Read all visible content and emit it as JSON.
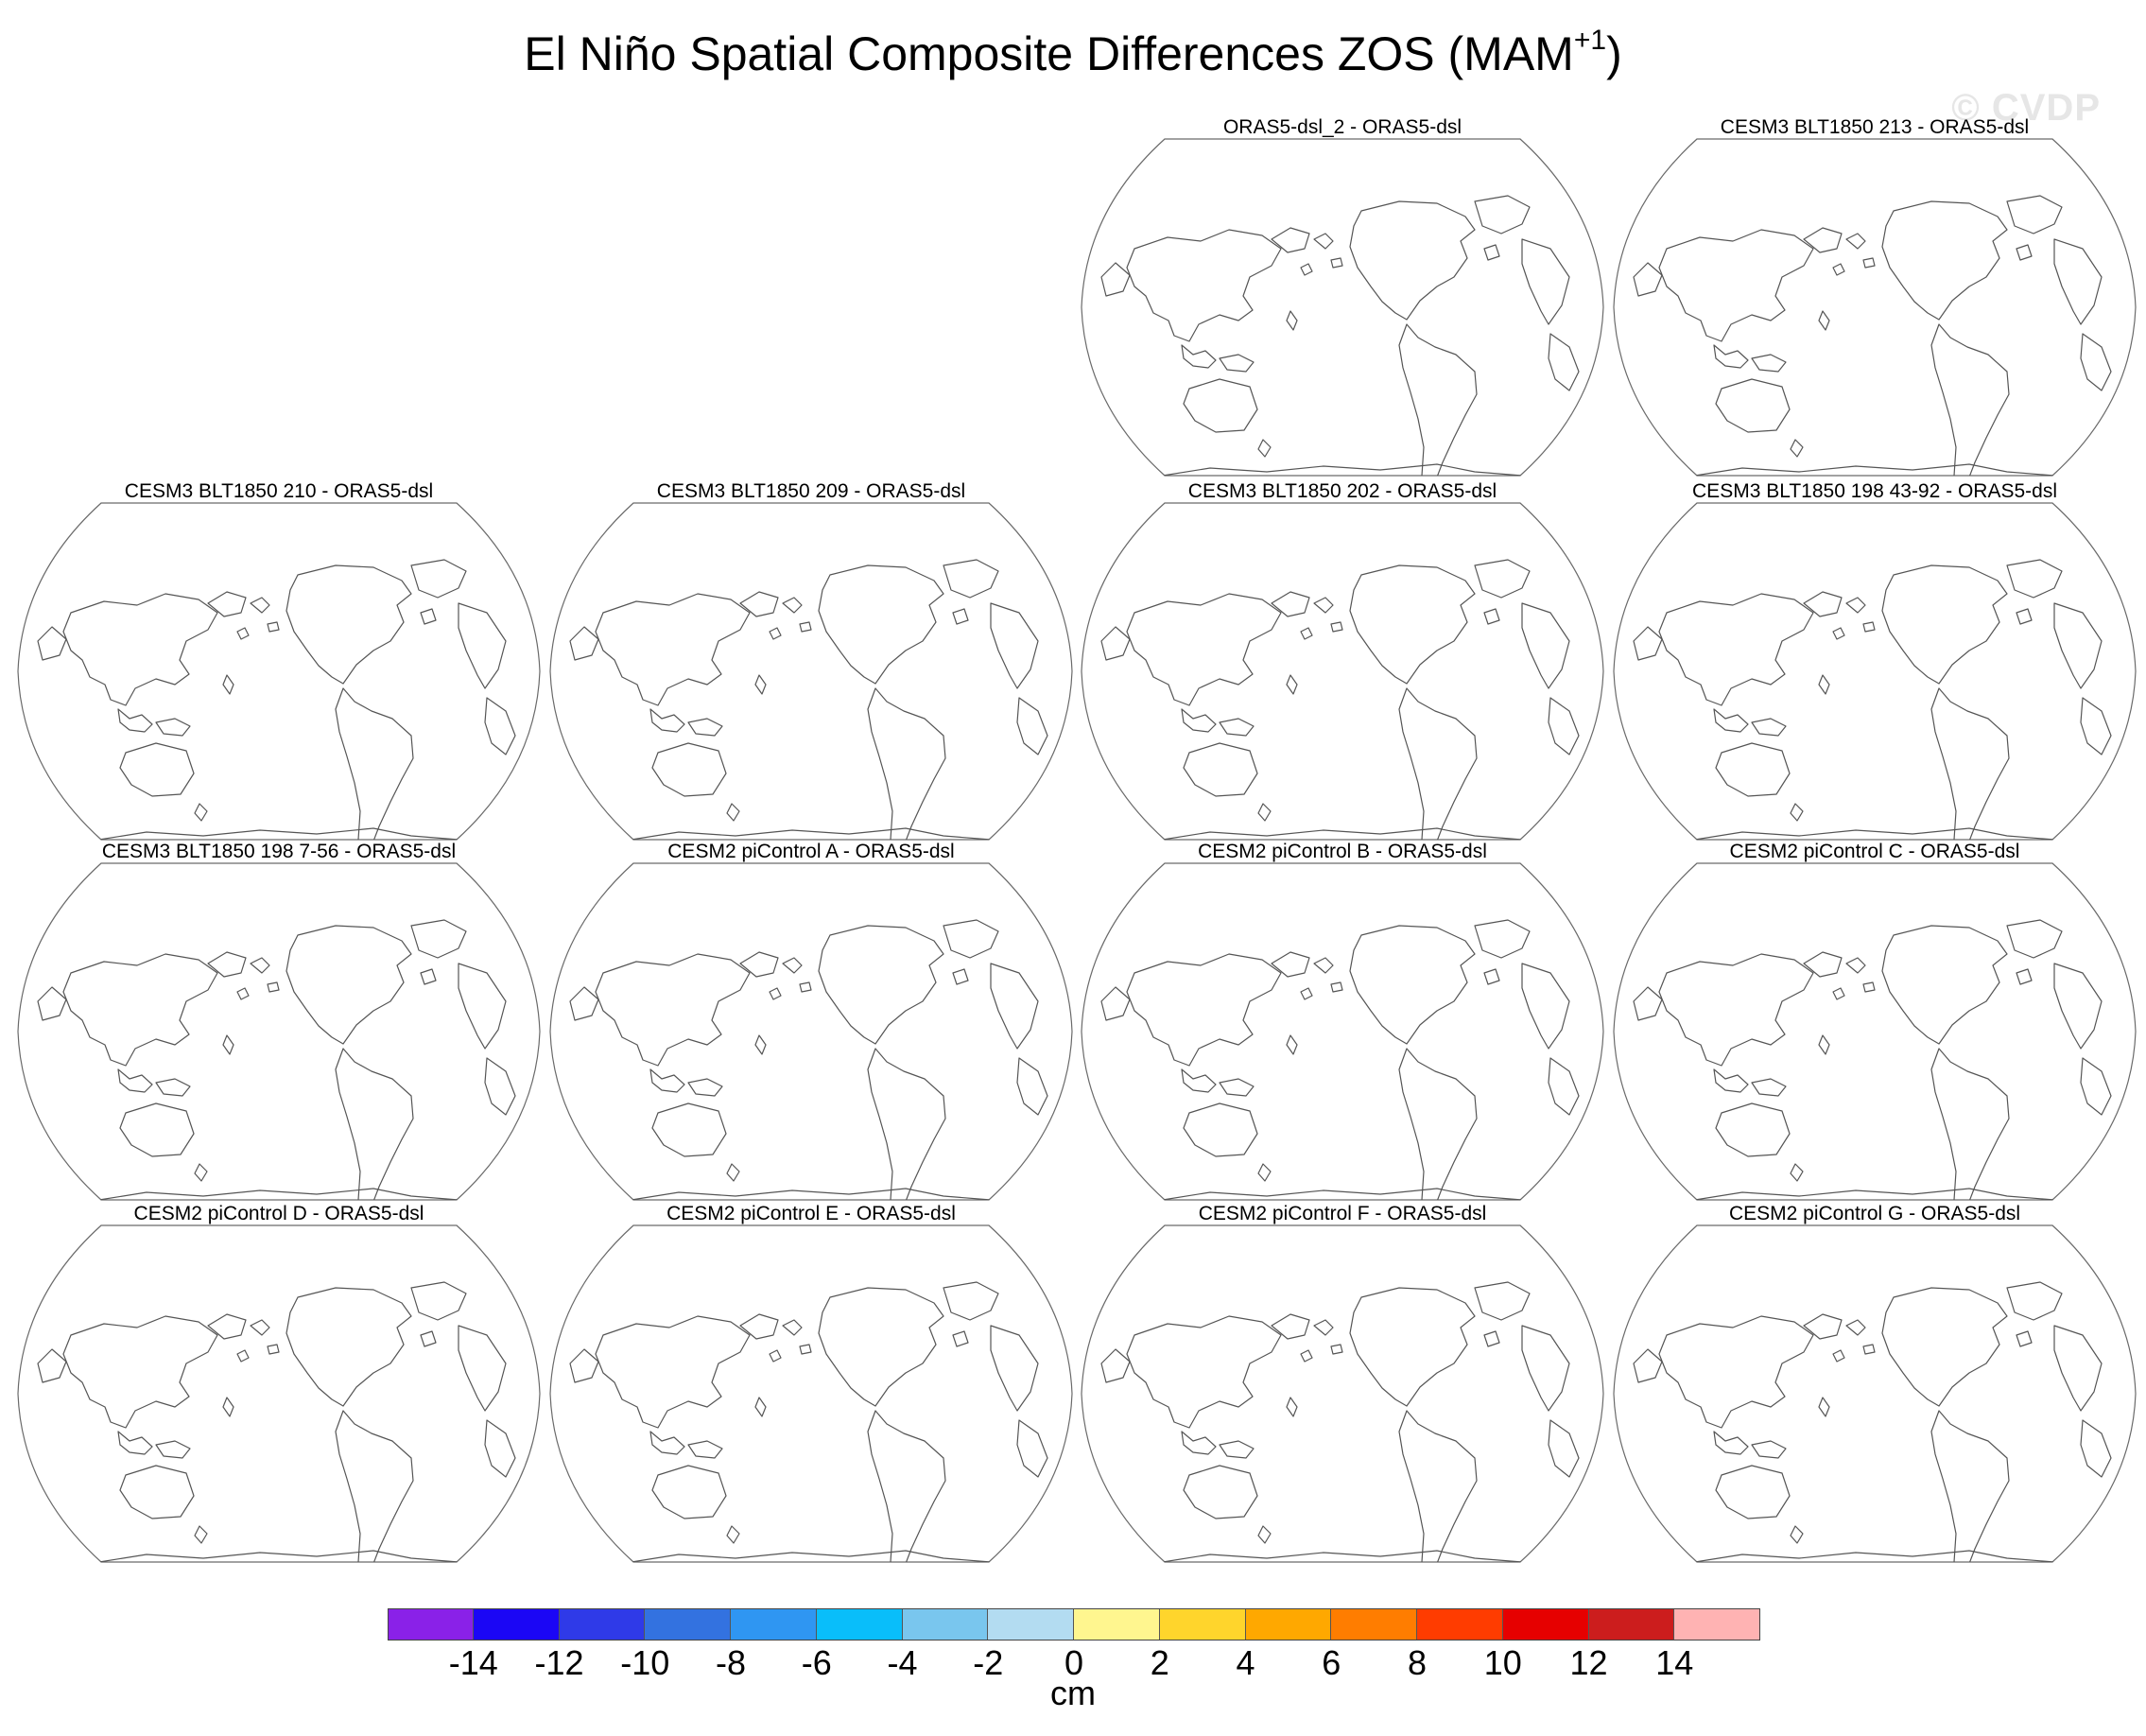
{
  "title": "El Niño Spatial Composite Differences ZOS (MAM",
  "title_superscript": "+1",
  "title_close": ")",
  "watermark": "© CVDP",
  "panels": [
    {
      "label": "ORAS5-dsl_2 - ORAS5-dsl"
    },
    {
      "label": "CESM3 BLT1850 213 - ORAS5-dsl"
    },
    {
      "label": "CESM3 BLT1850 210 - ORAS5-dsl"
    },
    {
      "label": "CESM3 BLT1850 209 - ORAS5-dsl"
    },
    {
      "label": "CESM3 BLT1850 202 - ORAS5-dsl"
    },
    {
      "label": "CESM3 BLT1850 198 43-92 - ORAS5-dsl"
    },
    {
      "label": "CESM3 BLT1850 198 7-56 - ORAS5-dsl"
    },
    {
      "label": "CESM2 piControl A - ORAS5-dsl"
    },
    {
      "label": "CESM2 piControl B - ORAS5-dsl"
    },
    {
      "label": "CESM2 piControl C - ORAS5-dsl"
    },
    {
      "label": "CESM2 piControl D - ORAS5-dsl"
    },
    {
      "label": "CESM2 piControl E - ORAS5-dsl"
    },
    {
      "label": "CESM2 piControl F - ORAS5-dsl"
    },
    {
      "label": "CESM2 piControl G - ORAS5-dsl"
    }
  ],
  "colorbar": {
    "colors": [
      "#8a21e8",
      "#1b06f5",
      "#2f3ae8",
      "#3372e0",
      "#2f96f2",
      "#09befa",
      "#79c6ee",
      "#b3dcf1",
      "#fff68f",
      "#ffd52c",
      "#ffa800",
      "#ff7d00",
      "#ff3c00",
      "#e60000",
      "#cc1d1d",
      "#ffb3b3"
    ],
    "ticks": [
      "-14",
      "-12",
      "-10",
      "-8",
      "-6",
      "-4",
      "-2",
      "0",
      "2",
      "4",
      "6",
      "8",
      "10",
      "12",
      "14"
    ],
    "unit": "cm"
  }
}
